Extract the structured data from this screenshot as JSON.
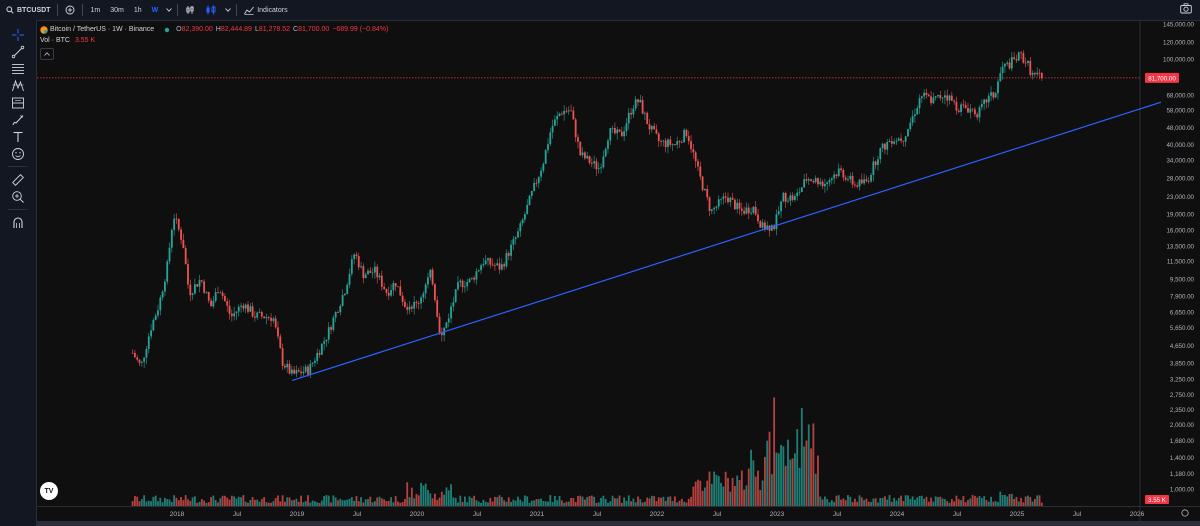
{
  "toolbar": {
    "symbol": "BTCUSDT",
    "intervals": [
      "1m",
      "30m",
      "1h",
      "W"
    ],
    "active_interval": "W",
    "indicators_label": "Indicators"
  },
  "legend": {
    "title": "Bitcoin / TetherUS · 1W · Binance",
    "open_label": "O",
    "open": "82,390.00",
    "high_label": "H",
    "high": "82,444.89",
    "low_label": "L",
    "low": "81,278.52",
    "close_label": "C",
    "close": "81,700.00",
    "change": "−689.99 (−0.84%)",
    "vol_label": "Vol · BTC",
    "vol_value": "3.55 K"
  },
  "colors": {
    "up": "#26a69a",
    "down": "#ef5350",
    "trendline": "#2962ff",
    "accent": "#2962ff",
    "price_badge": "#f23645"
  },
  "chart_data": {
    "type": "candlestick",
    "title": "Bitcoin / TetherUS · 1W · Binance",
    "scale": "log",
    "price_axis_ticks": [
      "145,000.00",
      "120,000.00",
      "100,000.00",
      "81,700.00",
      "68,000.00",
      "58,000.00",
      "48,000.00",
      "40,000.00",
      "34,000.00",
      "28,000.00",
      "23,000.00",
      "19,000.00",
      "16,000.00",
      "13,500.00",
      "11,500.00",
      "9,500.00",
      "7,900.00",
      "6,650.00",
      "5,650.00",
      "4,650.00",
      "3,850.00",
      "3,250.00",
      "2,750.00",
      "2,350.00",
      "2,000.00",
      "1,680.00",
      "1,400.00",
      "1,180.00",
      "1,000.00",
      "3.55 K"
    ],
    "price_ticks_values": [
      145000,
      120000,
      100000,
      68000,
      58000,
      48000,
      40000,
      34000,
      28000,
      23000,
      19000,
      16000,
      13500,
      11500,
      9500,
      7900,
      6650,
      5650,
      4650,
      3850,
      3250,
      2750,
      2350,
      2000,
      1680,
      1400,
      1180,
      1000
    ],
    "current_price": "81,700.00",
    "current_volume": "3.55 K",
    "time_axis_ticks": [
      "2018",
      "Jul",
      "2019",
      "Jul",
      "2020",
      "Jul",
      "2021",
      "Jul",
      "2022",
      "Jul",
      "2023",
      "Jul",
      "2024",
      "Jul",
      "2025",
      "Jul",
      "2026"
    ],
    "time_ticks_t": [
      2018.0,
      2018.5,
      2019.0,
      2019.5,
      2020.0,
      2020.5,
      2021.0,
      2021.5,
      2022.0,
      2022.5,
      2023.0,
      2023.5,
      2024.0,
      2024.5,
      2025.0,
      2025.5,
      2026.0
    ],
    "anchors": [
      [
        2017.63,
        4300
      ],
      [
        2017.7,
        3700
      ],
      [
        2017.78,
        5600
      ],
      [
        2017.85,
        7200
      ],
      [
        2017.92,
        11000
      ],
      [
        2017.97,
        19000
      ],
      [
        2018.05,
        14000
      ],
      [
        2018.1,
        8200
      ],
      [
        2018.2,
        9500
      ],
      [
        2018.28,
        7000
      ],
      [
        2018.35,
        8800
      ],
      [
        2018.45,
        6300
      ],
      [
        2018.55,
        7300
      ],
      [
        2018.65,
        6400
      ],
      [
        2018.8,
        6300
      ],
      [
        2018.88,
        3900
      ],
      [
        2018.96,
        3400
      ],
      [
        2019.1,
        3600
      ],
      [
        2019.25,
        5200
      ],
      [
        2019.4,
        8500
      ],
      [
        2019.48,
        12600
      ],
      [
        2019.55,
        10000
      ],
      [
        2019.65,
        10300
      ],
      [
        2019.75,
        8200
      ],
      [
        2019.82,
        9200
      ],
      [
        2019.9,
        7200
      ],
      [
        2020.0,
        7200
      ],
      [
        2020.12,
        10200
      ],
      [
        2020.2,
        5000
      ],
      [
        2020.35,
        9000
      ],
      [
        2020.45,
        9300
      ],
      [
        2020.55,
        11500
      ],
      [
        2020.7,
        10700
      ],
      [
        2020.85,
        15800
      ],
      [
        2020.95,
        23000
      ],
      [
        2021.05,
        33000
      ],
      [
        2021.12,
        48000
      ],
      [
        2021.2,
        57000
      ],
      [
        2021.28,
        58000
      ],
      [
        2021.36,
        36000
      ],
      [
        2021.45,
        33000
      ],
      [
        2021.52,
        31000
      ],
      [
        2021.6,
        46000
      ],
      [
        2021.7,
        44000
      ],
      [
        2021.8,
        61000
      ],
      [
        2021.85,
        64000
      ],
      [
        2021.93,
        49000
      ],
      [
        2022.02,
        41000
      ],
      [
        2022.15,
        40000
      ],
      [
        2022.25,
        46000
      ],
      [
        2022.35,
        29000
      ],
      [
        2022.45,
        19500
      ],
      [
        2022.58,
        23000
      ],
      [
        2022.7,
        19500
      ],
      [
        2022.8,
        20500
      ],
      [
        2022.88,
        16500
      ],
      [
        2022.98,
        16800
      ],
      [
        2023.05,
        23000
      ],
      [
        2023.15,
        22500
      ],
      [
        2023.25,
        28000
      ],
      [
        2023.4,
        26500
      ],
      [
        2023.52,
        30500
      ],
      [
        2023.65,
        26000
      ],
      [
        2023.75,
        27000
      ],
      [
        2023.85,
        37000
      ],
      [
        2023.95,
        42500
      ],
      [
        2024.05,
        43000
      ],
      [
        2024.12,
        52000
      ],
      [
        2024.2,
        68000
      ],
      [
        2024.3,
        64000
      ],
      [
        2024.4,
        69000
      ],
      [
        2024.5,
        60000
      ],
      [
        2024.6,
        59000
      ],
      [
        2024.68,
        56000
      ],
      [
        2024.75,
        65000
      ],
      [
        2024.82,
        69000
      ],
      [
        2024.87,
        90000
      ],
      [
        2024.95,
        96000
      ],
      [
        2025.03,
        104000
      ],
      [
        2025.08,
        97000
      ],
      [
        2025.13,
        84000
      ],
      [
        2025.17,
        83000
      ],
      [
        2025.22,
        81700
      ]
    ],
    "trendline": [
      [
        2018.96,
        3200
      ],
      [
        2026.2,
        63000
      ]
    ],
    "volume_scale_max": "3.55 K"
  }
}
